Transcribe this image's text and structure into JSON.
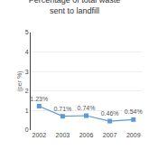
{
  "chart_data": {
    "type": "line",
    "title": "Percentage of total waste\nsent to landfill",
    "ylabel": "(per %)",
    "categories": [
      "2002",
      "2003",
      "2006",
      "2007",
      "2009"
    ],
    "values": [
      1.23,
      0.71,
      0.74,
      0.46,
      0.54
    ],
    "value_labels": [
      "1.23%",
      "0.71%",
      "0.74%",
      "0.46%",
      "0.54%"
    ],
    "data_labels": true,
    "color": "#5B9BD5",
    "marker": "square",
    "line_style": "solid",
    "ylim": [
      0,
      5
    ],
    "yticks": [
      0,
      1,
      2,
      3,
      4,
      5
    ],
    "grid": true
  }
}
